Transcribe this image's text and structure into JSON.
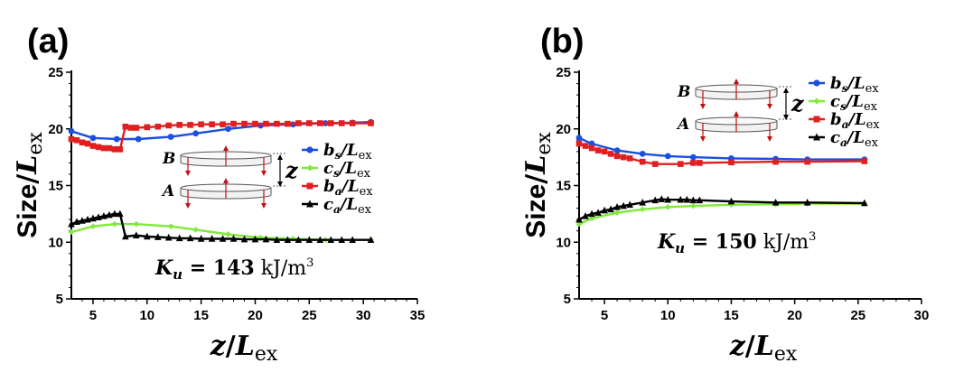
{
  "chart_data": [
    {
      "panel_label": "(a)",
      "type": "line",
      "xlabel": "z/L_ex",
      "ylabel": "Size/L_ex",
      "xlim": [
        3,
        35
      ],
      "ylim": [
        5,
        25
      ],
      "xticks": [
        "5",
        "10",
        "15",
        "20",
        "25",
        "30",
        "35"
      ],
      "yticks": [
        "5",
        "10",
        "15",
        "20",
        "25"
      ],
      "annotation": {
        "prefix": "K",
        "sub": "u",
        "eq": " = ",
        "value": "143",
        "unit": " kJ/m",
        "sup": "3"
      },
      "inset_labels": {
        "top": "B",
        "bottom": "A",
        "distance": "z"
      },
      "legend_position": "right",
      "series": [
        {
          "name": "b_s/L_ex",
          "sym": "b",
          "sub": "s",
          "den": "/L",
          "dsub": "ex",
          "color": "#1a4fe0",
          "marker": "circle",
          "x": [
            3,
            5,
            7.2,
            9.2,
            12.2,
            14.5,
            17.5,
            20.5,
            23.5,
            26.5,
            29,
            30.7
          ],
          "y": [
            19.8,
            19.2,
            19.1,
            19.1,
            19.3,
            19.6,
            20.0,
            20.3,
            20.4,
            20.5,
            20.55,
            20.6
          ]
        },
        {
          "name": "c_s/L_ex",
          "sym": "c",
          "sub": "s",
          "den": "/L",
          "dsub": "ex",
          "color": "#7fea3a",
          "marker": "diamond",
          "x": [
            3,
            5,
            7,
            9,
            12.2,
            14.5,
            17.5,
            20.5,
            23.5,
            26.5,
            29,
            30.7
          ],
          "y": [
            10.9,
            11.4,
            11.6,
            11.6,
            11.4,
            11.1,
            10.7,
            10.4,
            10.3,
            10.2,
            10.2,
            10.2
          ]
        },
        {
          "name": "b_a/L_ex",
          "sym": "b",
          "sub": "a",
          "den": "/L",
          "dsub": "ex",
          "color": "#e02020",
          "marker": "square",
          "x": [
            3,
            3.5,
            4,
            4.5,
            5,
            5.5,
            6,
            6.5,
            7,
            7.5,
            8,
            8.5,
            9,
            10,
            11,
            12,
            13,
            14,
            15,
            16,
            17,
            18,
            19,
            20,
            21,
            22,
            23,
            24,
            25,
            26,
            27,
            28,
            29,
            30.7
          ],
          "y": [
            19.1,
            19.0,
            18.8,
            18.7,
            18.5,
            18.4,
            18.3,
            18.3,
            18.2,
            18.2,
            20.2,
            20.1,
            20.1,
            20.15,
            20.2,
            20.3,
            20.35,
            20.35,
            20.4,
            20.4,
            20.4,
            20.45,
            20.45,
            20.45,
            20.45,
            20.45,
            20.45,
            20.5,
            20.5,
            20.5,
            20.5,
            20.5,
            20.5,
            20.5
          ]
        },
        {
          "name": "c_a/L_ex",
          "sym": "c",
          "sub": "a",
          "den": "/L",
          "dsub": "ex",
          "color": "#000000",
          "marker": "triangle",
          "x": [
            3,
            3.5,
            4,
            4.5,
            5,
            5.5,
            6,
            6.5,
            7,
            7.5,
            8,
            9,
            10,
            11,
            12,
            13,
            14,
            15,
            16,
            17,
            18,
            19,
            20,
            21,
            22,
            23,
            24,
            25,
            26,
            27,
            28,
            29,
            30.7
          ],
          "y": [
            11.6,
            11.8,
            11.9,
            12.0,
            12.1,
            12.2,
            12.3,
            12.4,
            12.5,
            12.5,
            10.5,
            10.6,
            10.5,
            10.45,
            10.4,
            10.35,
            10.35,
            10.3,
            10.3,
            10.3,
            10.3,
            10.25,
            10.25,
            10.25,
            10.2,
            10.2,
            10.2,
            10.2,
            10.2,
            10.2,
            10.2,
            10.2,
            10.2
          ]
        }
      ]
    },
    {
      "panel_label": "(b)",
      "type": "line",
      "xlabel": "z/L_ex",
      "ylabel": "Size/L_ex",
      "xlim": [
        3,
        30
      ],
      "ylim": [
        5,
        25
      ],
      "xticks": [
        "5",
        "10",
        "15",
        "20",
        "25",
        "30"
      ],
      "yticks": [
        "5",
        "10",
        "15",
        "20",
        "25"
      ],
      "annotation": {
        "prefix": "K",
        "sub": "u",
        "eq": " = ",
        "value": "150",
        "unit": " kJ/m",
        "sup": "3"
      },
      "inset_labels": {
        "top": "B",
        "bottom": "A",
        "distance": "z"
      },
      "legend_position": "top-right",
      "series": [
        {
          "name": "b_s/L_ex",
          "sym": "b",
          "sub": "s",
          "den": "/L",
          "dsub": "ex",
          "color": "#1a4fe0",
          "marker": "circle",
          "x": [
            3,
            4,
            6,
            8,
            10,
            12,
            15,
            18.5,
            21,
            25.5
          ],
          "y": [
            19.2,
            18.7,
            18.1,
            17.8,
            17.6,
            17.5,
            17.4,
            17.35,
            17.3,
            17.3
          ]
        },
        {
          "name": "c_s/L_ex",
          "sym": "c",
          "sub": "s",
          "den": "/L",
          "dsub": "ex",
          "color": "#7fea3a",
          "marker": "diamond",
          "x": [
            3,
            4,
            6,
            8,
            10,
            12,
            15,
            18.5,
            21,
            25.5
          ],
          "y": [
            11.6,
            12.1,
            12.6,
            12.9,
            13.1,
            13.2,
            13.3,
            13.35,
            13.4,
            13.4
          ]
        },
        {
          "name": "b_a/L_ex",
          "sym": "b",
          "sub": "a",
          "den": "/L",
          "dsub": "ex",
          "color": "#e02020",
          "marker": "square",
          "x": [
            3,
            3.5,
            4,
            4.5,
            5,
            5.5,
            6,
            6.5,
            7,
            8,
            9,
            11,
            12,
            12.5,
            15,
            18.5,
            21,
            25.5
          ],
          "y": [
            18.7,
            18.5,
            18.3,
            18.1,
            18.0,
            17.8,
            17.6,
            17.5,
            17.4,
            17.1,
            16.9,
            16.9,
            17.0,
            17.0,
            17.05,
            17.1,
            17.1,
            17.15
          ]
        },
        {
          "name": "c_a/L_ex",
          "sym": "c",
          "sub": "a",
          "den": "/L",
          "dsub": "ex",
          "color": "#000000",
          "marker": "triangle",
          "x": [
            3,
            3.5,
            4,
            4.5,
            5,
            5.5,
            6,
            6.5,
            7,
            8,
            9,
            9.5,
            10,
            11,
            11.5,
            12,
            12.5,
            15,
            18.5,
            21,
            25.5
          ],
          "y": [
            12.0,
            12.3,
            12.5,
            12.6,
            12.8,
            12.9,
            13.1,
            13.2,
            13.3,
            13.5,
            13.7,
            13.8,
            13.75,
            13.75,
            13.75,
            13.7,
            13.7,
            13.6,
            13.5,
            13.5,
            13.45
          ]
        }
      ]
    }
  ]
}
